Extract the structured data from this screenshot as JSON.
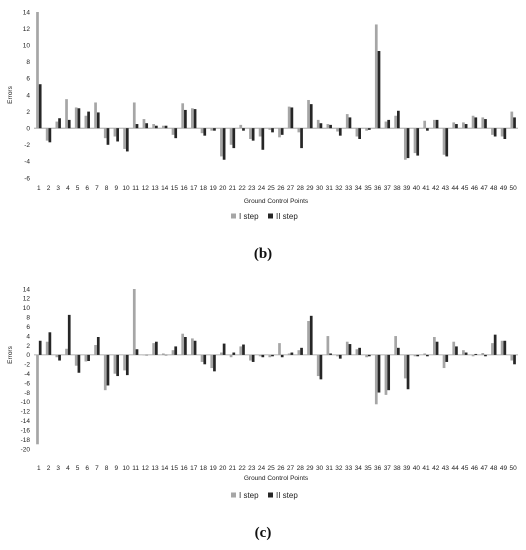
{
  "chart_data": [
    {
      "type": "bar",
      "caption": "(b)",
      "xlabel": "Ground Control Points",
      "ylabel": "Errors",
      "ylim": [
        -6,
        14
      ],
      "yticks": [
        -6,
        -4,
        -2,
        0,
        2,
        4,
        6,
        8,
        10,
        12,
        14
      ],
      "categories": [
        "1",
        "2",
        "3",
        "4",
        "5",
        "6",
        "7",
        "8",
        "9",
        "10",
        "11",
        "12",
        "13",
        "14",
        "15",
        "16",
        "17",
        "18",
        "19",
        "20",
        "21",
        "22",
        "23",
        "24",
        "25",
        "26",
        "27",
        "28",
        "29",
        "30",
        "31",
        "32",
        "33",
        "34",
        "35",
        "36",
        "37",
        "38",
        "39",
        "40",
        "41",
        "42",
        "43",
        "44",
        "45",
        "46",
        "47",
        "48",
        "49",
        "50"
      ],
      "series": [
        {
          "name": "I step",
          "color": "#a6a6a6",
          "values": [
            14,
            -1.5,
            0.8,
            3.5,
            2.5,
            1.5,
            3.1,
            -1.2,
            -1.0,
            -2.5,
            3.1,
            1.1,
            0.5,
            0.3,
            -0.8,
            3.0,
            2.4,
            -0.6,
            -0.3,
            -3.4,
            -2.0,
            0.4,
            -1.3,
            -1.0,
            -0.2,
            -1.1,
            2.6,
            -0.5,
            3.4,
            1.0,
            0.5,
            -0.4,
            1.7,
            -1.0,
            -0.3,
            12.5,
            0.8,
            1.5,
            -3.8,
            -3.0,
            0.9,
            1.0,
            -3.2,
            0.7,
            0.7,
            1.5,
            1.3,
            -0.8,
            -1.0,
            2.0
          ]
        },
        {
          "name": "II step",
          "color": "#262626",
          "values": [
            5.3,
            -1.7,
            1.2,
            1.0,
            2.4,
            2.0,
            1.9,
            -2.0,
            -1.6,
            -2.8,
            0.5,
            0.6,
            0.3,
            0.3,
            -1.2,
            2.2,
            2.3,
            -0.9,
            -0.3,
            -3.8,
            -2.4,
            -0.3,
            -1.5,
            -2.6,
            -0.5,
            -0.8,
            2.5,
            -2.4,
            2.9,
            0.6,
            0.4,
            -0.9,
            1.3,
            -1.3,
            -0.2,
            9.3,
            1.0,
            2.1,
            -3.6,
            -3.3,
            -0.3,
            1.0,
            -3.4,
            0.5,
            0.5,
            1.3,
            1.1,
            -1.0,
            -1.3,
            1.3
          ]
        }
      ],
      "legend": "bottom"
    },
    {
      "type": "bar",
      "caption": "(c)",
      "xlabel": "Ground Control Points",
      "ylabel": "Errors",
      "ylim": [
        -20,
        14
      ],
      "yticks": [
        -20,
        -18,
        -16,
        -14,
        -12,
        -10,
        -8,
        -6,
        -4,
        -2,
        0,
        2,
        4,
        6,
        8,
        10,
        12,
        14
      ],
      "categories": [
        "1",
        "2",
        "3",
        "4",
        "5",
        "6",
        "7",
        "8",
        "9",
        "10",
        "11",
        "12",
        "13",
        "14",
        "15",
        "16",
        "17",
        "18",
        "19",
        "20",
        "21",
        "22",
        "23",
        "24",
        "25",
        "26",
        "27",
        "28",
        "29",
        "30",
        "31",
        "32",
        "33",
        "34",
        "35",
        "36",
        "37",
        "38",
        "39",
        "40",
        "41",
        "42",
        "43",
        "44",
        "45",
        "46",
        "47",
        "48",
        "49",
        "50"
      ],
      "series": [
        {
          "name": "I step",
          "color": "#a6a6a6",
          "values": [
            -19,
            2.8,
            -0.5,
            1.3,
            -2.3,
            -1.4,
            2.1,
            -7.5,
            -4.0,
            -3.3,
            14,
            0,
            2.5,
            0.3,
            1.0,
            4.5,
            3.5,
            -1.5,
            -2.8,
            0.5,
            -0.5,
            1.8,
            -1.2,
            -0.3,
            -0.5,
            2.5,
            0.3,
            1.0,
            7.2,
            -4.5,
            4.0,
            -0.3,
            2.8,
            1.2,
            -0.5,
            -10.5,
            -8.5,
            4.0,
            -5.0,
            -0.3,
            0.3,
            3.8,
            -2.8,
            2.8,
            1.0,
            -0.3,
            0.4,
            2.5,
            3.0,
            -1.2
          ]
        },
        {
          "name": "II step",
          "color": "#262626",
          "values": [
            3.0,
            4.8,
            -1.2,
            8.5,
            -3.8,
            -1.3,
            3.8,
            -6.5,
            -4.5,
            -4.3,
            1.2,
            0,
            2.8,
            0,
            1.8,
            3.8,
            3.0,
            -2.0,
            -3.5,
            2.4,
            0.5,
            2.2,
            -1.5,
            -0.5,
            -0.3,
            -0.5,
            0.5,
            1.5,
            8.3,
            -5.2,
            0.3,
            -0.8,
            2.3,
            1.5,
            -0.3,
            -8.0,
            -7.5,
            1.5,
            -7.3,
            -0.3,
            -0.3,
            2.8,
            -1.5,
            1.8,
            0.5,
            0.2,
            -0.3,
            4.3,
            3.0,
            -2.0
          ]
        }
      ],
      "legend": "bottom"
    }
  ]
}
